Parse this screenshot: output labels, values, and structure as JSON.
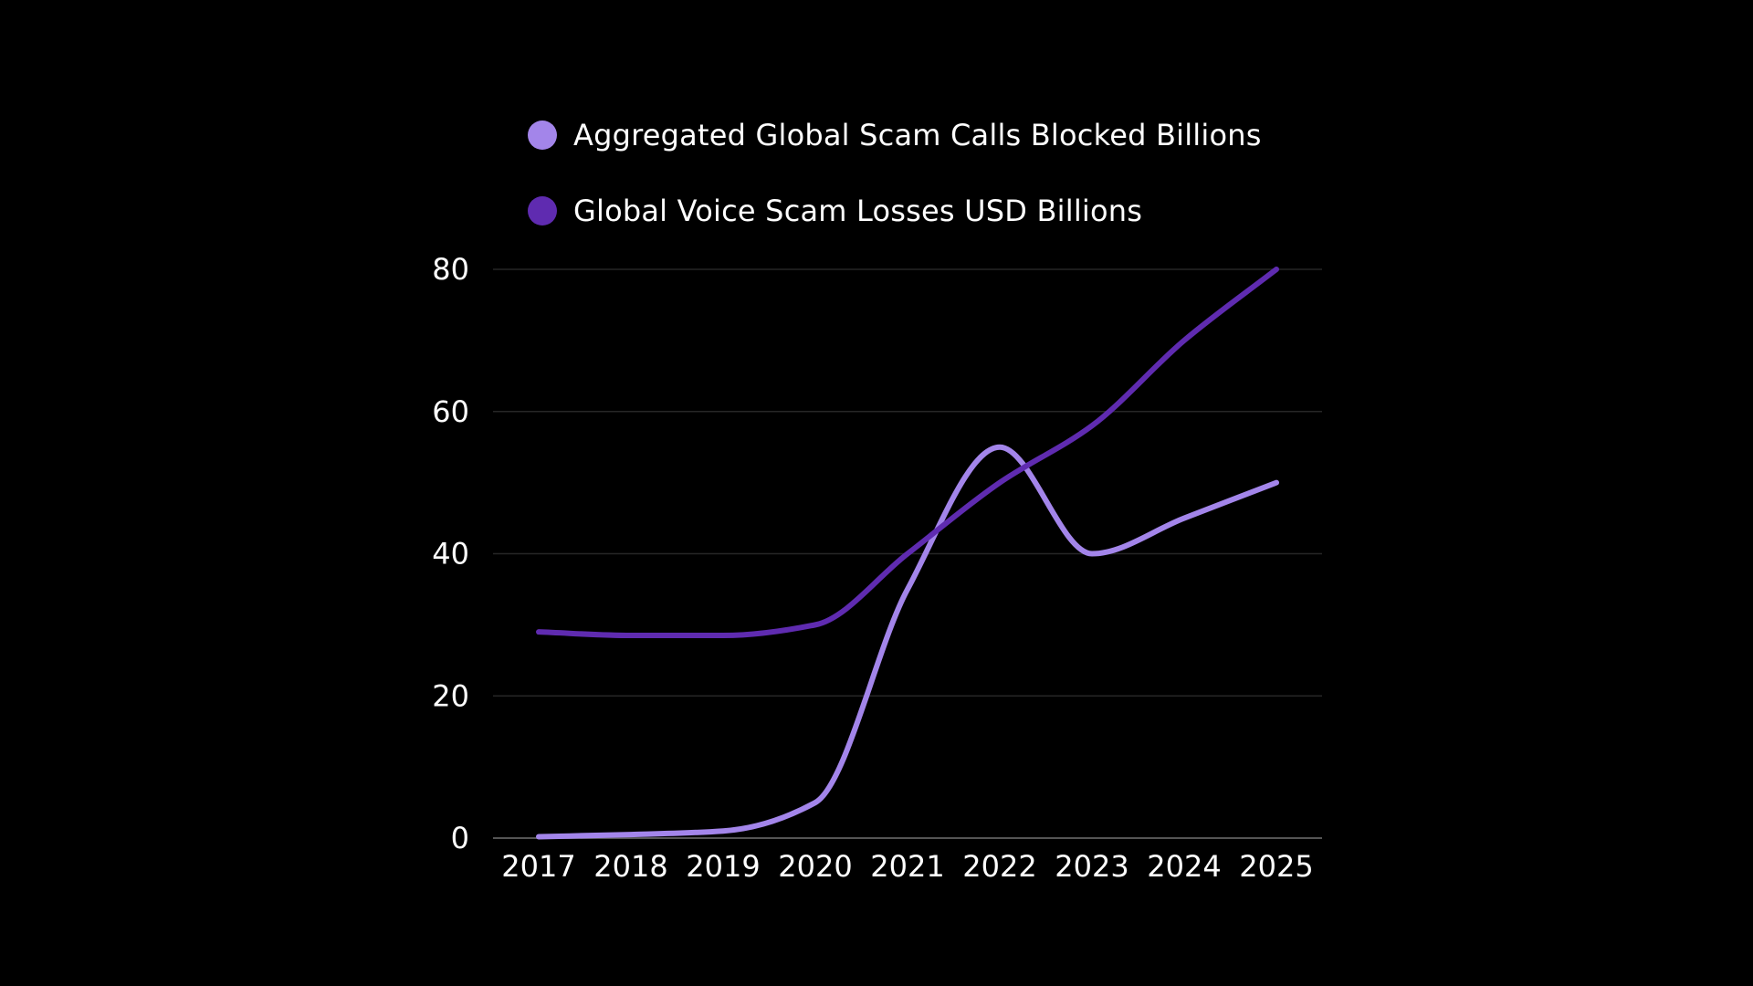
{
  "chart_data": {
    "type": "line",
    "title": "",
    "xlabel": "",
    "ylabel": "",
    "categories": [
      "2017",
      "2018",
      "2019",
      "2020",
      "2021",
      "2022",
      "2023",
      "2024",
      "2025"
    ],
    "ylim": [
      0,
      80
    ],
    "yticks": [
      "0",
      "20",
      "40",
      "60",
      "80"
    ],
    "grid": true,
    "legend_position": "top-left",
    "series": [
      {
        "name": "Aggregated Global Scam Calls Blocked Billions",
        "color": "#a385ea",
        "values": [
          0.2,
          0.5,
          1,
          5,
          35,
          55,
          40,
          45,
          50
        ]
      },
      {
        "name": "Global Voice Scam Losses USD Billions",
        "color": "#5f2bb0",
        "values": [
          29,
          28.5,
          28.5,
          30,
          40,
          50,
          58,
          70,
          80
        ]
      }
    ]
  }
}
